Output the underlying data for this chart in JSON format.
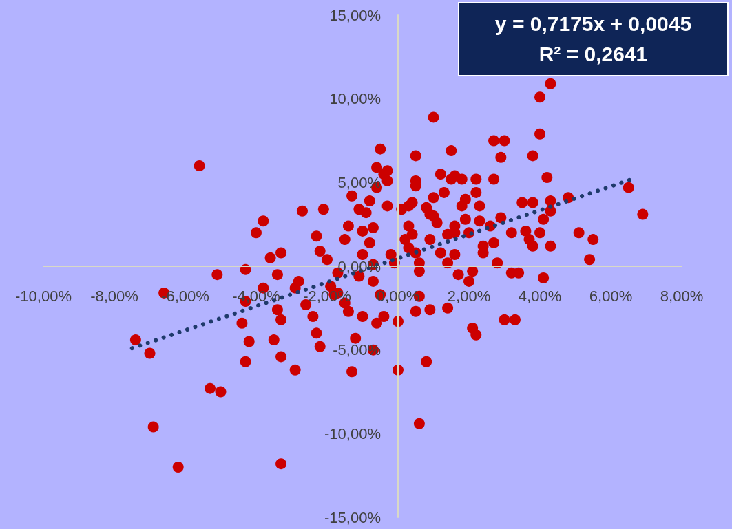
{
  "chart_data": {
    "type": "scatter",
    "annotations": [
      "y = 0,7175x + 0,0045",
      "R² = 0,2641"
    ],
    "marker": "circle",
    "xlim": [
      -0.1,
      0.08
    ],
    "xticks": [
      {
        "value": -0.1,
        "label": "-10,00%"
      },
      {
        "value": -0.08,
        "label": "-8,00%"
      },
      {
        "value": -0.06,
        "label": "-6,00%"
      },
      {
        "value": -0.04,
        "label": "-4,00%"
      },
      {
        "value": -0.02,
        "label": "-2,00%"
      },
      {
        "value": 0,
        "label": "0,00%"
      },
      {
        "value": 0.02,
        "label": "2,00%"
      },
      {
        "value": 0.04,
        "label": "4,00%"
      },
      {
        "value": 0.06,
        "label": "6,00%"
      },
      {
        "value": 0.08,
        "label": "8,00%"
      }
    ],
    "ylim": [
      -0.15,
      0.15
    ],
    "yticks": [
      {
        "value": -0.15,
        "label": "-15,00%"
      },
      {
        "value": -0.1,
        "label": "-10,00%"
      },
      {
        "value": -0.05,
        "label": "-5,00%"
      },
      {
        "value": 0,
        "label": "0,00%"
      },
      {
        "value": 0.05,
        "label": "5,00%"
      },
      {
        "value": 0.1,
        "label": "10,00%"
      },
      {
        "value": 0.15,
        "label": "15,00%"
      }
    ],
    "series": [
      {
        "color": "#cc0000",
        "x": [
          -0.056,
          -0.074,
          -0.07,
          -0.069,
          -0.062,
          -0.033,
          -0.053,
          -0.05,
          -0.066,
          -0.051,
          -0.043,
          -0.04,
          -0.038,
          -0.043,
          -0.042,
          -0.044,
          -0.043,
          -0.038,
          -0.036,
          -0.033,
          -0.034,
          -0.034,
          -0.033,
          -0.033,
          -0.035,
          -0.029,
          -0.029,
          -0.028,
          -0.027,
          -0.026,
          -0.024,
          -0.023,
          -0.022,
          -0.021,
          -0.023,
          -0.022,
          -0.02,
          -0.017,
          -0.017,
          -0.015,
          -0.014,
          -0.019,
          -0.018,
          -0.013,
          -0.012,
          -0.011,
          -0.01,
          -0.015,
          -0.014,
          -0.013,
          -0.011,
          -0.01,
          -0.01,
          -0.009,
          -0.008,
          -0.007,
          -0.006,
          -0.006,
          -0.005,
          -0.004,
          -0.003,
          -0.003,
          -0.007,
          -0.007,
          -0.005,
          -0.004,
          -0.008,
          -0.007,
          -0.006,
          -0.001,
          0.0,
          0.0,
          0.002,
          0.003,
          0.001,
          0.003,
          0.004,
          0.005,
          0.005,
          0.006,
          0.005,
          0.006,
          0.006,
          0.008,
          0.009,
          0.006,
          0.008,
          0.01,
          0.01,
          0.01,
          0.011,
          0.012,
          0.012,
          0.013,
          0.014,
          0.014,
          0.014,
          0.015,
          0.016,
          0.016,
          0.016,
          0.017,
          0.018,
          0.019,
          0.019,
          0.02,
          0.02,
          0.021,
          0.022,
          0.022,
          0.023,
          0.021,
          0.022,
          0.023,
          0.024,
          0.024,
          0.026,
          0.027,
          0.027,
          0.027,
          0.028,
          0.029,
          0.029,
          0.03,
          0.03,
          0.032,
          0.033,
          0.032,
          0.034,
          0.035,
          0.036,
          0.037,
          0.038,
          0.038,
          0.038,
          0.04,
          0.04,
          0.04,
          0.041,
          0.041,
          0.042,
          0.043,
          0.043,
          0.043,
          0.043,
          0.048,
          0.051,
          0.054,
          0.055,
          0.065,
          0.069,
          0.018,
          0.016,
          0.009,
          0.003,
          -0.002,
          -0.003,
          0.004,
          0.005,
          0.015,
          0.005,
          0.009
        ],
        "values": [
          0.06,
          -0.044,
          -0.052,
          -0.096,
          -0.12,
          -0.118,
          -0.073,
          -0.075,
          -0.016,
          -0.005,
          -0.002,
          0.02,
          0.027,
          -0.057,
          -0.045,
          -0.034,
          -0.021,
          -0.013,
          0.005,
          0.008,
          -0.005,
          -0.026,
          -0.032,
          -0.054,
          -0.044,
          -0.062,
          -0.013,
          -0.009,
          0.033,
          -0.023,
          -0.03,
          -0.04,
          -0.048,
          0.034,
          0.018,
          0.009,
          0.004,
          -0.004,
          -0.016,
          -0.022,
          -0.027,
          -0.012,
          -0.017,
          -0.063,
          -0.043,
          -0.006,
          -0.03,
          0.016,
          0.024,
          0.042,
          0.034,
          0.021,
          0.007,
          0.032,
          0.039,
          0.023,
          0.047,
          0.059,
          0.07,
          0.055,
          0.036,
          0.057,
          0.001,
          -0.009,
          -0.017,
          -0.03,
          0.014,
          -0.05,
          -0.034,
          0.002,
          -0.033,
          -0.062,
          0.016,
          0.024,
          0.034,
          0.036,
          0.019,
          0.066,
          0.051,
          0.002,
          -0.027,
          -0.018,
          -0.094,
          -0.057,
          -0.026,
          -0.003,
          0.035,
          0.03,
          0.041,
          0.089,
          0.026,
          0.008,
          0.055,
          0.044,
          0.019,
          0.002,
          -0.025,
          0.069,
          0.054,
          0.02,
          0.007,
          -0.005,
          0.052,
          0.04,
          0.028,
          0.02,
          -0.009,
          -0.037,
          0.052,
          0.044,
          0.027,
          -0.003,
          -0.041,
          0.036,
          0.012,
          0.008,
          0.024,
          0.052,
          0.075,
          0.014,
          0.002,
          0.029,
          0.065,
          -0.032,
          0.075,
          -0.004,
          -0.032,
          0.02,
          -0.004,
          0.038,
          0.021,
          0.016,
          0.066,
          0.012,
          0.038,
          0.079,
          0.101,
          0.02,
          -0.007,
          0.028,
          0.053,
          0.039,
          0.012,
          0.033,
          0.109,
          0.041,
          0.02,
          0.004,
          0.016,
          0.047,
          0.031,
          0.036,
          0.024,
          0.016,
          0.011,
          0.007,
          0.051,
          0.038,
          0.048,
          0.052,
          0.008,
          0.031
        ]
      },
      {
        "type": "line",
        "color": "#1f3a6b",
        "marker": "none",
        "line_style": "dotted",
        "x": [
          -0.075,
          0.066
        ],
        "values": [
          -0.049,
          0.052
        ]
      }
    ]
  }
}
